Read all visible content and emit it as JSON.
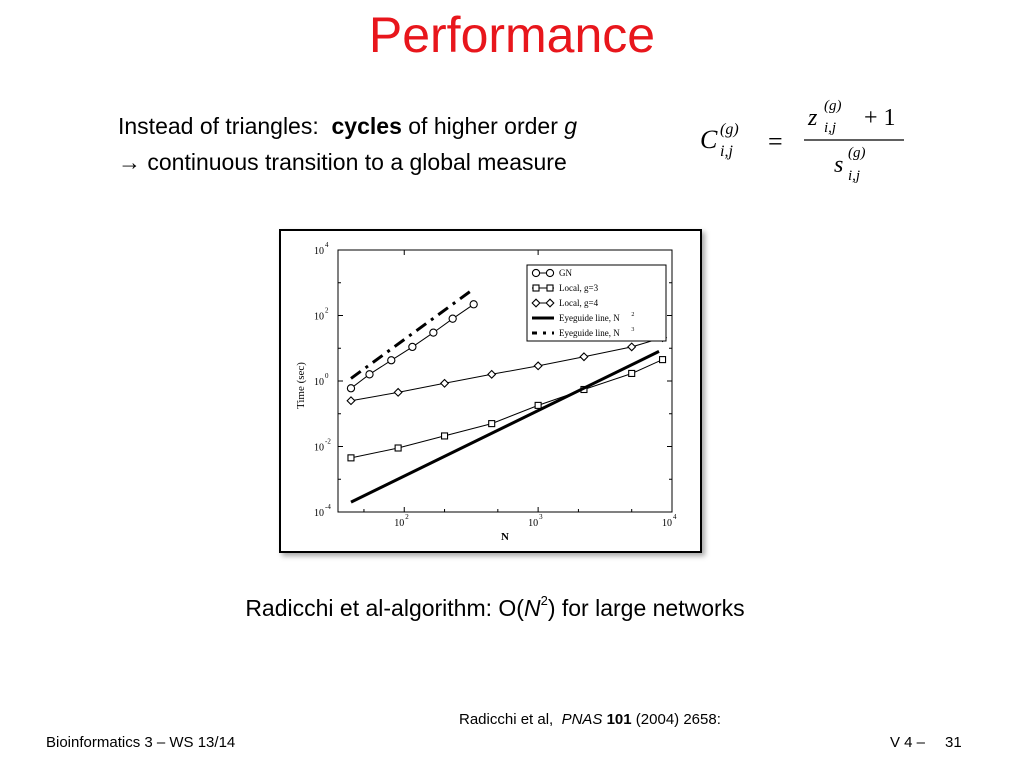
{
  "title": "Performance",
  "bullets": {
    "line1_prefix": "Instead of triangles:",
    "line1_bold": "cycles",
    "line1_mid": "of higher order",
    "line1_var": "g",
    "line2": "→ continuous transition to a global measure"
  },
  "formula": {
    "lhs_base": "C",
    "lhs_sup": "(g)",
    "lhs_sub": "i,j",
    "equals": "=",
    "num_base": "z",
    "num_sup": "(g)",
    "num_sub": "i,j",
    "num_plus": "+ 1",
    "den_base": "s",
    "den_sup": "(g)",
    "den_sub": "i,j"
  },
  "algo": {
    "prefix": "Radicchi et al-algorithm:  O(",
    "var": "N",
    "sup": "2",
    "suffix": ") for large networks"
  },
  "reference": {
    "authors": "Radicchi et al,",
    "journal": "PNAS",
    "volume": "101",
    "rest": "(2004) 2658:"
  },
  "footer": {
    "left": "Bioinformatics 3 – WS 13/14",
    "right": "V 4 –",
    "page": "31"
  },
  "chart_data": {
    "type": "line",
    "xscale": "log",
    "yscale": "log",
    "xlabel": "N",
    "ylabel": "Time (sec)",
    "xlim": [
      32,
      10000
    ],
    "ylim": [
      0.0001,
      10000
    ],
    "x_ticks": [
      {
        "base": "10",
        "exp": "2",
        "value": 100
      },
      {
        "base": "10",
        "exp": "3",
        "value": 1000
      },
      {
        "base": "10",
        "exp": "4",
        "value": 10000
      }
    ],
    "y_ticks": [
      {
        "base": "10",
        "exp": "-4",
        "value": 0.0001
      },
      {
        "base": "10",
        "exp": "-2",
        "value": 0.01
      },
      {
        "base": "10",
        "exp": "0",
        "value": 1
      },
      {
        "base": "10",
        "exp": "2",
        "value": 100
      },
      {
        "base": "10",
        "exp": "4",
        "value": 10000
      }
    ],
    "legend_position": "top-right",
    "series": [
      {
        "name": "GN",
        "marker": "circle",
        "line": "solid",
        "points": [
          [
            40,
            0.6
          ],
          [
            55,
            1.6
          ],
          [
            80,
            4.3
          ],
          [
            115,
            11
          ],
          [
            165,
            30
          ],
          [
            230,
            80
          ],
          [
            330,
            220
          ]
        ]
      },
      {
        "name": "Local, g=3",
        "marker": "square",
        "line": "solid",
        "points": [
          [
            40,
            0.0045
          ],
          [
            90,
            0.009
          ],
          [
            200,
            0.021
          ],
          [
            450,
            0.05
          ],
          [
            1000,
            0.18
          ],
          [
            2200,
            0.55
          ],
          [
            5000,
            1.7
          ],
          [
            8500,
            4.5
          ]
        ]
      },
      {
        "name": "Local, g=4",
        "marker": "diamond",
        "line": "solid",
        "points": [
          [
            40,
            0.25
          ],
          [
            90,
            0.45
          ],
          [
            200,
            0.85
          ],
          [
            450,
            1.6
          ],
          [
            1000,
            2.9
          ],
          [
            2200,
            5.5
          ],
          [
            5000,
            11
          ],
          [
            8500,
            21
          ]
        ]
      },
      {
        "name": "Eyeguide line, N",
        "name_sup": "2",
        "marker": "none",
        "line": "thick-solid",
        "points": [
          [
            40,
            0.0002
          ],
          [
            8000,
            8
          ]
        ]
      },
      {
        "name": "Eyeguide line, N",
        "name_sup": "3",
        "marker": "none",
        "line": "dash-dot",
        "points": [
          [
            40,
            1.2
          ],
          [
            330,
            650
          ]
        ]
      }
    ]
  }
}
